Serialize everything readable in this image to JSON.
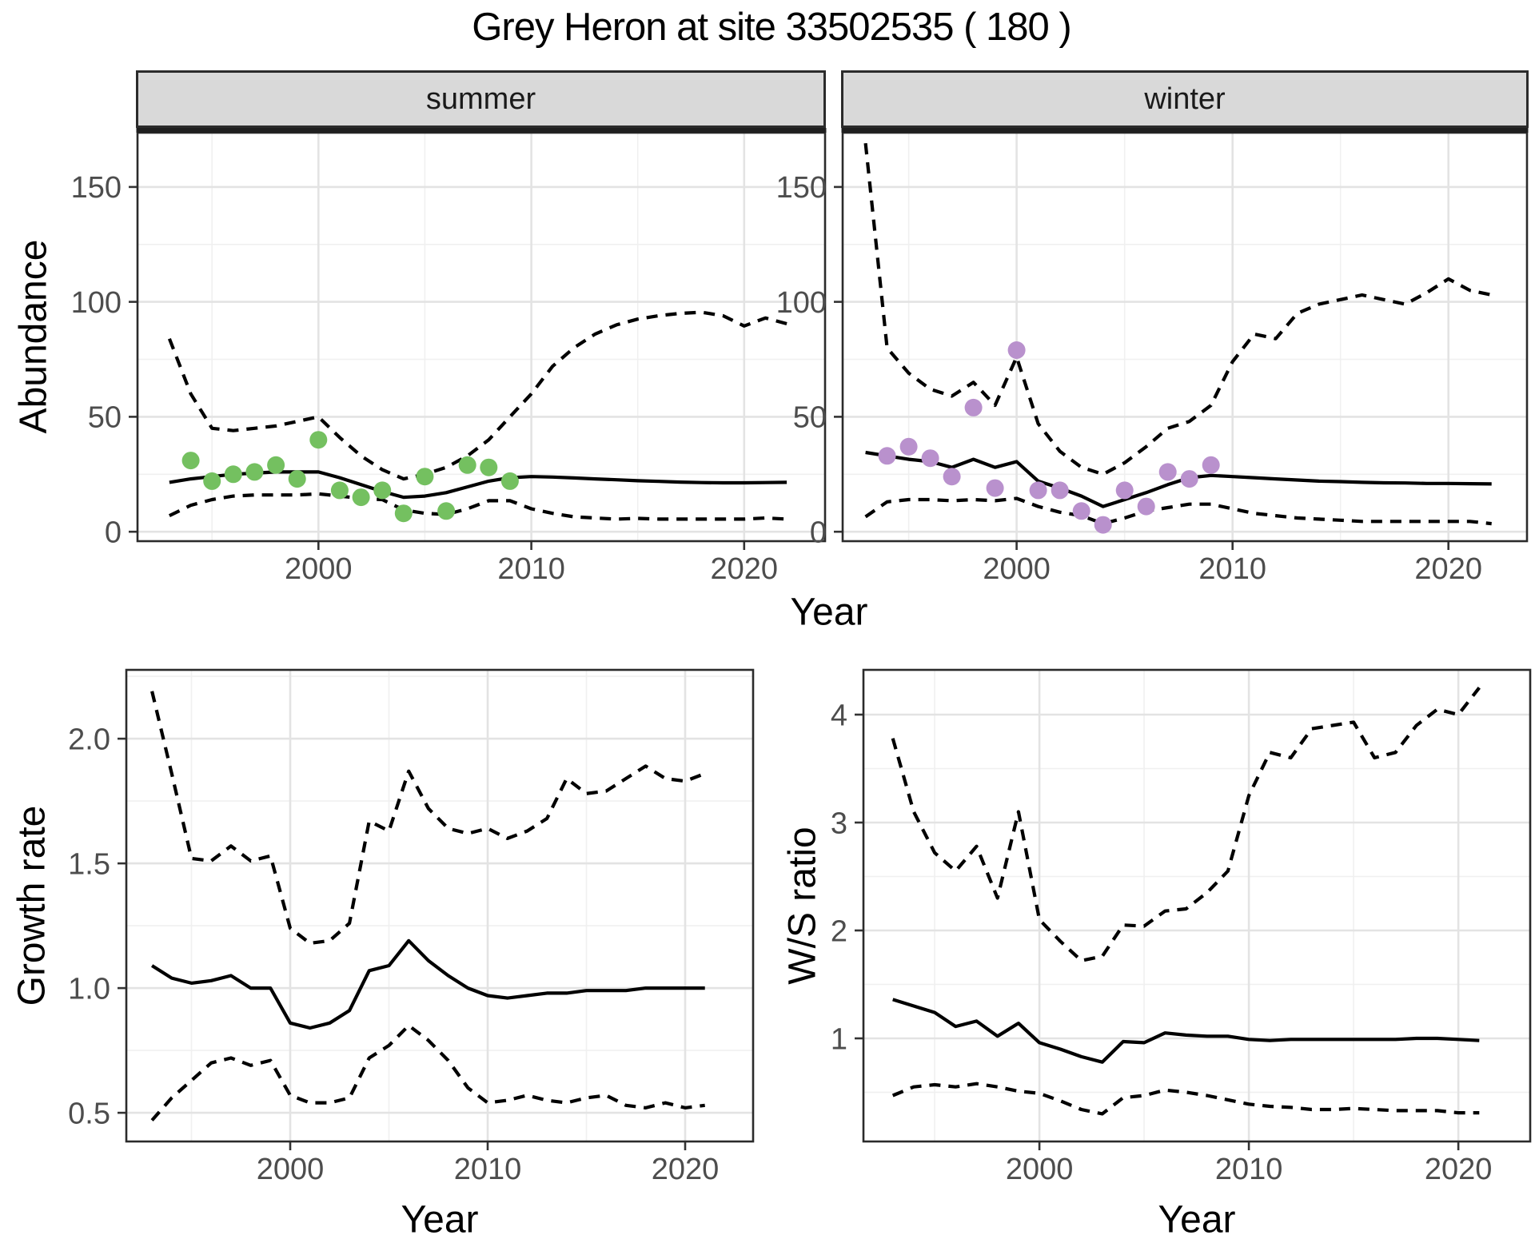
{
  "title": "Grey Heron at site 33502535 ( 180 )",
  "axes": {
    "y_abundance": "Abundance",
    "x_year": "Year",
    "y_growth": "Growth rate",
    "y_ws": "W/S ratio"
  },
  "facets": [
    "summer",
    "winter"
  ],
  "colors": {
    "summer_points": "#74C060",
    "winter_points": "#B991CD",
    "fit_line": "#000000",
    "ci_line": "#000000",
    "strip_bg": "#D9D9D9",
    "panel_border": "#2B2B2B",
    "grid_major": "#E3E3E3",
    "grid_minor": "#F0F0F0",
    "tick_label": "#4D4D4D"
  },
  "chart_data": [
    {
      "panel": "summer",
      "type": "line",
      "facet_label": "summer",
      "xlabel": "Year",
      "ylabel": "Abundance",
      "xlim": [
        1991.5,
        2023.8
      ],
      "ylim": [
        -4.1,
        173.6
      ],
      "xticks": {
        "major": [
          2000,
          2010,
          2020
        ],
        "labels": [
          "2000",
          "2010",
          "2020"
        ],
        "minor": [
          1995,
          2005,
          2015
        ]
      },
      "yticks": {
        "major": [
          0,
          50,
          100,
          150
        ],
        "labels": [
          "0",
          "50",
          "100",
          "150"
        ],
        "minor": [
          25,
          75,
          125
        ]
      },
      "years": [
        1993,
        1994,
        1995,
        1996,
        1997,
        1998,
        1999,
        2000,
        2001,
        2002,
        2003,
        2004,
        2005,
        2006,
        2007,
        2008,
        2009,
        2010,
        2011,
        2012,
        2013,
        2014,
        2015,
        2016,
        2017,
        2018,
        2019,
        2020,
        2021,
        2022
      ],
      "series": [
        {
          "name": "upper_95ci",
          "style": "dashed",
          "values": [
            84,
            60,
            45,
            44,
            45,
            46,
            48,
            50,
            41,
            33,
            27,
            23,
            25,
            28,
            33,
            40,
            50,
            60,
            72,
            80,
            86,
            90,
            92.5,
            94,
            95,
            95.5,
            94,
            89.5,
            93,
            90.5
          ]
        },
        {
          "name": "lower_95ci",
          "style": "dashed",
          "values": [
            7,
            11.5,
            14,
            15.5,
            16,
            16,
            16,
            16.5,
            15.5,
            14.5,
            14,
            9.5,
            8,
            7.5,
            10,
            13.5,
            13.5,
            10,
            8,
            6.5,
            6,
            5.5,
            5.8,
            5.5,
            5.5,
            5.5,
            5.5,
            5.5,
            6,
            5.5
          ]
        },
        {
          "name": "median_fit",
          "style": "solid",
          "values": [
            21.5,
            23,
            24,
            25,
            25.5,
            26,
            26,
            26,
            23.5,
            20.5,
            17.5,
            15,
            15.5,
            17,
            19.5,
            22,
            23.5,
            24,
            23.8,
            23.4,
            23,
            22.6,
            22.2,
            21.9,
            21.6,
            21.4,
            21.3,
            21.3,
            21.4,
            21.5
          ]
        }
      ],
      "points": {
        "name": "observed-summer-counts",
        "color": "#74C060",
        "years": [
          1994,
          1995,
          1996,
          1997,
          1998,
          1999,
          2000,
          2001,
          2002,
          2003,
          2004,
          2005,
          2006,
          2007,
          2008,
          2009
        ],
        "values": [
          31,
          22,
          25,
          26,
          29,
          23,
          40,
          18,
          15,
          18,
          8,
          24,
          9,
          29,
          28,
          22
        ]
      }
    },
    {
      "panel": "winter",
      "type": "line",
      "facet_label": "winter",
      "xlabel": "Year",
      "ylabel": "Abundance",
      "xlim": [
        1991.94,
        2023.64
      ],
      "ylim": [
        -4.1,
        173.6
      ],
      "xticks": {
        "major": [
          2000,
          2010,
          2020
        ],
        "labels": [
          "2000",
          "2010",
          "2020"
        ],
        "minor": [
          1995,
          2005,
          2015
        ]
      },
      "yticks": {
        "major": [
          0,
          50,
          100,
          150
        ],
        "labels": [
          "0",
          "50",
          "100",
          "150"
        ],
        "minor": [
          25,
          75,
          125
        ]
      },
      "years": [
        1993,
        1994,
        1995,
        1996,
        1997,
        1998,
        1999,
        2000,
        2001,
        2002,
        2003,
        2004,
        2005,
        2006,
        2007,
        2008,
        2009,
        2010,
        2011,
        2012,
        2013,
        2014,
        2015,
        2016,
        2017,
        2018,
        2019,
        2020,
        2021,
        2022
      ],
      "series": [
        {
          "name": "upper_95ci",
          "style": "dashed",
          "values": [
            169,
            80,
            69,
            62,
            59,
            65,
            55,
            76,
            47,
            35,
            28,
            25,
            30,
            37,
            45,
            48,
            55,
            74,
            86,
            84,
            95,
            99,
            101,
            103,
            101,
            99,
            104,
            110,
            105,
            103
          ]
        },
        {
          "name": "lower_95ci",
          "style": "dashed",
          "values": [
            6.5,
            13,
            14,
            14,
            13.5,
            14,
            13.5,
            14.5,
            11,
            8.5,
            7,
            3.5,
            6,
            9,
            10.5,
            12,
            12,
            10,
            8,
            7,
            6,
            5.5,
            5,
            4.5,
            4.5,
            4.5,
            4.5,
            4.5,
            4.5,
            3.5
          ]
        },
        {
          "name": "median_fit",
          "style": "solid",
          "values": [
            34.5,
            33,
            31.5,
            30.5,
            28,
            31.5,
            28,
            30.5,
            22,
            19,
            15.5,
            11,
            14,
            17,
            20.5,
            23.5,
            24.5,
            24,
            23.5,
            23,
            22.5,
            22,
            21.8,
            21.5,
            21.3,
            21.2,
            21,
            21,
            20.9,
            20.8
          ]
        }
      ],
      "points": {
        "name": "observed-winter-counts",
        "color": "#B991CD",
        "years": [
          1994,
          1995,
          1996,
          1997,
          1998,
          1999,
          2000,
          2001,
          2002,
          2003,
          2004,
          2005,
          2006,
          2007,
          2008,
          2009
        ],
        "values": [
          33,
          37,
          32,
          24,
          54,
          19,
          79,
          18,
          18,
          9,
          3,
          18,
          11,
          26,
          23,
          29
        ]
      }
    },
    {
      "panel": "growth",
      "type": "line",
      "facet_label": null,
      "xlabel": "Year",
      "ylabel": "Growth rate",
      "xlim": [
        1991.7,
        2023.44
      ],
      "ylim": [
        0.385,
        2.276
      ],
      "xticks": {
        "major": [
          2000,
          2010,
          2020
        ],
        "labels": [
          "2000",
          "2010",
          "2020"
        ],
        "minor": [
          1995,
          2005,
          2015
        ]
      },
      "yticks": {
        "major": [
          0.5,
          1.0,
          1.5,
          2.0
        ],
        "labels": [
          "0.5",
          "1.0",
          "1.5",
          "2.0"
        ],
        "minor": [
          0.75,
          1.25,
          1.75,
          2.25
        ]
      },
      "years": [
        1993,
        1994,
        1995,
        1996,
        1997,
        1998,
        1999,
        2000,
        2001,
        2002,
        2003,
        2004,
        2005,
        2006,
        2007,
        2008,
        2009,
        2010,
        2011,
        2012,
        2013,
        2014,
        2015,
        2016,
        2017,
        2018,
        2019,
        2020,
        2021
      ],
      "series": [
        {
          "name": "upper_95ci",
          "style": "dashed",
          "values": [
            2.19,
            1.86,
            1.52,
            1.51,
            1.57,
            1.51,
            1.53,
            1.24,
            1.18,
            1.19,
            1.26,
            1.67,
            1.63,
            1.87,
            1.72,
            1.64,
            1.62,
            1.64,
            1.6,
            1.63,
            1.68,
            1.84,
            1.78,
            1.79,
            1.84,
            1.89,
            1.84,
            1.83,
            1.86
          ]
        },
        {
          "name": "lower_95ci",
          "style": "dashed",
          "values": [
            0.47,
            0.56,
            0.63,
            0.7,
            0.72,
            0.69,
            0.71,
            0.57,
            0.54,
            0.54,
            0.56,
            0.72,
            0.77,
            0.85,
            0.79,
            0.71,
            0.6,
            0.54,
            0.55,
            0.57,
            0.55,
            0.54,
            0.56,
            0.57,
            0.53,
            0.52,
            0.54,
            0.52,
            0.53
          ]
        },
        {
          "name": "median_fit",
          "style": "solid",
          "values": [
            1.09,
            1.04,
            1.02,
            1.03,
            1.05,
            1.0,
            1.0,
            0.86,
            0.84,
            0.86,
            0.91,
            1.07,
            1.09,
            1.19,
            1.11,
            1.05,
            1.0,
            0.97,
            0.96,
            0.97,
            0.98,
            0.98,
            0.99,
            0.99,
            0.99,
            1.0,
            1.0,
            1.0,
            1.0
          ]
        }
      ],
      "points": null
    },
    {
      "panel": "ws",
      "type": "line",
      "facet_label": null,
      "xlabel": "Year",
      "ylabel": "W/S ratio",
      "xlim": [
        1991.6,
        2023.43
      ],
      "ylim": [
        0.044,
        4.415
      ],
      "xticks": {
        "major": [
          2000,
          2010,
          2020
        ],
        "labels": [
          "2000",
          "2010",
          "2020"
        ],
        "minor": [
          1995,
          2005,
          2015
        ]
      },
      "yticks": {
        "major": [
          1,
          2,
          3,
          4
        ],
        "labels": [
          "1",
          "2",
          "3",
          "4"
        ],
        "minor": [
          0.5,
          1.5,
          2.5,
          3.5
        ]
      },
      "years": [
        1993,
        1994,
        1995,
        1996,
        1997,
        1998,
        1999,
        2000,
        2001,
        2002,
        2003,
        2004,
        2005,
        2006,
        2007,
        2008,
        2009,
        2010,
        2011,
        2012,
        2013,
        2014,
        2015,
        2016,
        2017,
        2018,
        2019,
        2020,
        2021
      ],
      "series": [
        {
          "name": "upper_95ci",
          "style": "dashed",
          "values": [
            3.78,
            3.1,
            2.72,
            2.55,
            2.78,
            2.3,
            3.1,
            2.1,
            1.9,
            1.72,
            1.76,
            2.05,
            2.04,
            2.18,
            2.2,
            2.35,
            2.55,
            3.25,
            3.65,
            3.6,
            3.87,
            3.9,
            3.93,
            3.6,
            3.65,
            3.9,
            4.05,
            4.0,
            4.25
          ]
        },
        {
          "name": "lower_95ci",
          "style": "dashed",
          "values": [
            0.47,
            0.55,
            0.57,
            0.55,
            0.58,
            0.55,
            0.51,
            0.49,
            0.42,
            0.34,
            0.3,
            0.45,
            0.47,
            0.52,
            0.5,
            0.47,
            0.43,
            0.39,
            0.37,
            0.36,
            0.34,
            0.34,
            0.35,
            0.34,
            0.33,
            0.33,
            0.33,
            0.31,
            0.31
          ]
        },
        {
          "name": "median_fit",
          "style": "solid",
          "values": [
            1.36,
            1.3,
            1.24,
            1.11,
            1.16,
            1.02,
            1.14,
            0.96,
            0.9,
            0.83,
            0.78,
            0.97,
            0.96,
            1.05,
            1.03,
            1.02,
            1.02,
            0.99,
            0.98,
            0.99,
            0.99,
            0.99,
            0.99,
            0.99,
            0.99,
            1.0,
            1.0,
            0.99,
            0.98
          ]
        }
      ],
      "points": null
    }
  ]
}
